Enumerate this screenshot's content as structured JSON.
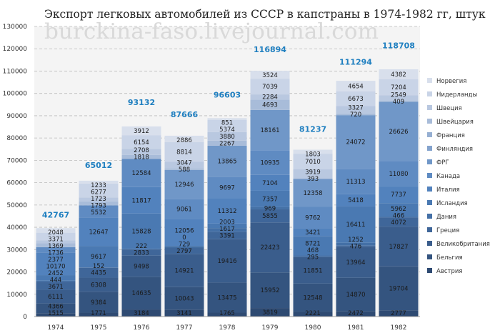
{
  "chart_data": {
    "type": "bar",
    "stacked": true,
    "title": "Экспорт легковых автомобилей из СССР в капстраны в 1974-1982 гг, штук",
    "watermark": "burckina-faso.livejournal.com",
    "xlabel": "",
    "ylabel": "",
    "ylim": [
      0,
      130000
    ],
    "yticks": [
      0,
      10000,
      20000,
      30000,
      40000,
      50000,
      60000,
      70000,
      80000,
      90000,
      100000,
      110000,
      120000,
      130000
    ],
    "grid": true,
    "legend_position": "right",
    "categories": [
      "1974",
      "1975",
      "1976",
      "1977",
      "1978",
      "1979",
      "1980",
      "1981",
      "1982"
    ],
    "totals": [
      42767,
      65012,
      93132,
      87666,
      96603,
      116894,
      81237,
      111294,
      118708
    ],
    "series": [
      {
        "name": "Австрия",
        "color": "#2e4a72",
        "values": [
          1515,
          1771,
          3184,
          3141,
          1765,
          3819,
          2221,
          2472,
          2777
        ]
      },
      {
        "name": "Бельгия",
        "color": "#34547f",
        "values": [
          4366,
          9384,
          14635,
          10043,
          13475,
          15952,
          12548,
          14870,
          19704
        ]
      },
      {
        "name": "Великобритания",
        "color": "#3a5d8c",
        "values": [
          6111,
          6308,
          9498,
          14921,
          19416,
          22423,
          11851,
          13964,
          17827
        ]
      },
      {
        "name": "Греция",
        "color": "#3f6699",
        "values": [
          3671,
          4435,
          2833,
          2797,
          3391,
          5855,
          295,
          476,
          4072
        ]
      },
      {
        "name": "Дания",
        "color": "#4470a6",
        "values": [
          444,
          152,
          222,
          729,
          1617,
          969,
          468,
          1252,
          466
        ]
      },
      {
        "name": "Исландия",
        "color": "#4a79b2",
        "values": [
          2452,
          9617,
          15828,
          0,
          2003,
          7357,
          8721,
          16411,
          5962
        ]
      },
      {
        "name": "Италия",
        "color": "#5282bd",
        "values": [
          10170,
          12647,
          11817,
          12056,
          11312,
          7104,
          3421,
          5418,
          7737
        ]
      },
      {
        "name": "Канада",
        "color": "#5f8bc2",
        "values": [
          2377,
          5532,
          12584,
          9061,
          9697,
          10935,
          9762,
          11313,
          11080
        ]
      },
      {
        "name": "ФРГ",
        "color": "#7097c8",
        "values": [
          null,
          null,
          null,
          12946,
          13865,
          18161,
          12358,
          24072,
          26626
        ]
      },
      {
        "name": "Финляндия",
        "color": "#84a3cd",
        "values": [
          null,
          null,
          null,
          null,
          null,
          null,
          null,
          null,
          null
        ]
      },
      {
        "name": "Франция",
        "color": "#96afd2",
        "values": [
          null,
          null,
          null,
          null,
          null,
          null,
          null,
          null,
          null
        ]
      },
      {
        "name": "Швейцария",
        "color": "#a8bcd9",
        "values": [
          1736,
          1793,
          1818,
          588,
          2267,
          4693,
          393,
          720,
          409
        ]
      },
      {
        "name": "Швеция",
        "color": "#b9c8e0",
        "values": [
          1369,
          1723,
          2708,
          3047,
          3880,
          2284,
          3919,
          3327,
          2549
        ]
      },
      {
        "name": "Нидерланды",
        "color": "#c9d4e7",
        "values": [
          3371,
          6277,
          6154,
          8814,
          5374,
          7039,
          7010,
          6673,
          7204
        ]
      },
      {
        "name": "Норвегия",
        "color": "#d8dfec",
        "values": [
          2048,
          1233,
          3912,
          2886,
          851,
          3524,
          1803,
          4654,
          4382
        ]
      }
    ]
  }
}
